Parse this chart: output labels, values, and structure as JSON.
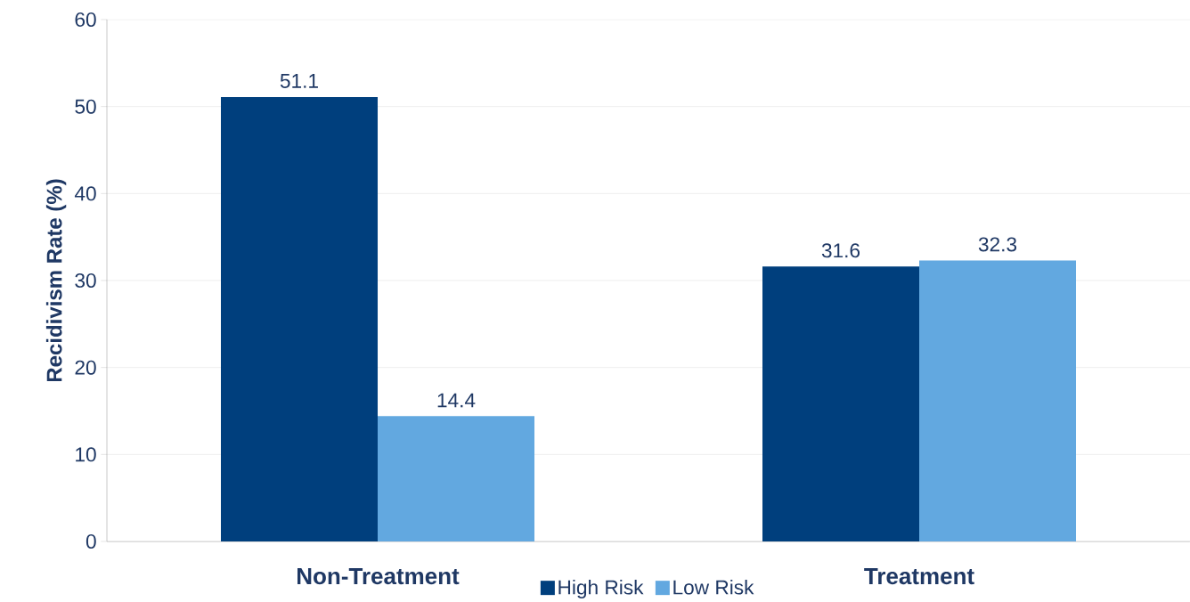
{
  "chart_data": {
    "type": "bar",
    "ylabel": "Recidivism Rate (%)",
    "categories": [
      "Non-Treatment",
      "Treatment"
    ],
    "series": [
      {
        "name": "High Risk",
        "color": "#003f7d",
        "values": [
          51.1,
          31.6
        ]
      },
      {
        "name": "Low Risk",
        "color": "#62a8e0",
        "values": [
          14.4,
          32.3
        ]
      }
    ],
    "ylim": [
      0,
      60
    ],
    "yticks": [
      0,
      10,
      20,
      30,
      40,
      50,
      60
    ],
    "grid": "y",
    "legend": "bottom",
    "data_labels": true
  }
}
